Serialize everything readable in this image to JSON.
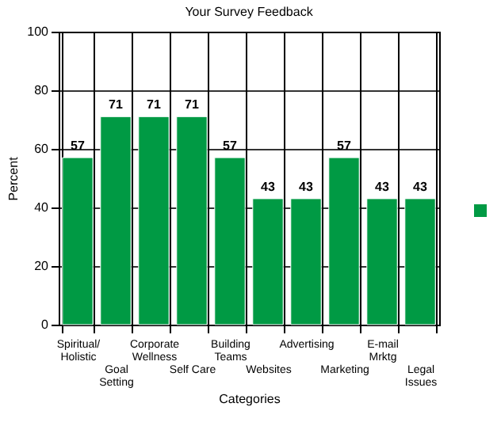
{
  "chart_data": {
    "type": "bar",
    "title": "Your Survey Feedback",
    "xlabel": "Categories",
    "ylabel": "Percent",
    "categories": [
      "Spiritual/ Holistic",
      "Goal Setting",
      "Corporate Wellness",
      "Self Care",
      "Building Teams",
      "Websites",
      "Advertising",
      "Marketing",
      "E-mail Mrktg",
      "Legal Issues"
    ],
    "values": [
      57,
      71,
      71,
      71,
      57,
      43,
      43,
      57,
      43,
      43
    ],
    "color": "#009a44",
    "ylim": [
      0,
      100
    ],
    "yticks": [
      0,
      20,
      40,
      60,
      80,
      100
    ],
    "grid": true,
    "data_labels": true
  }
}
